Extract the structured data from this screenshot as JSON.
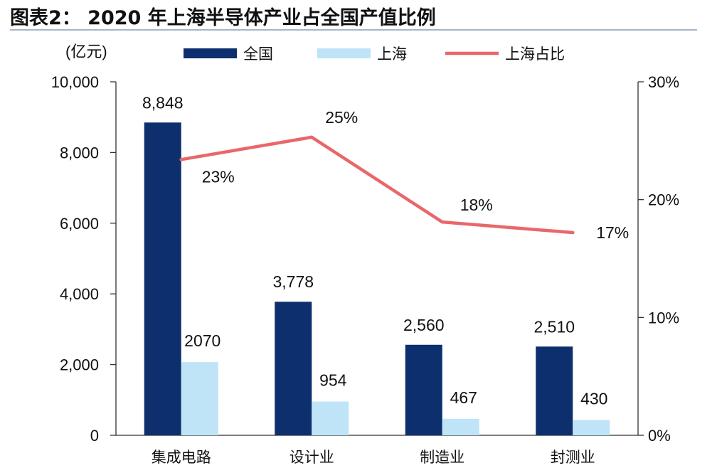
{
  "chart_data": {
    "type": "bar",
    "title": "图表2：  2020 年上海半导体产业占全国产值比例",
    "unit_label": "(亿元)",
    "categories": [
      "集成电路",
      "设计业",
      "制造业",
      "封测业"
    ],
    "series": [
      {
        "name": "全国",
        "kind": "bar",
        "axis": "left",
        "color": "#0e2f6e",
        "values": [
          8848,
          3778,
          2560,
          2510
        ],
        "labels": [
          "8,848",
          "3,778",
          "2,560",
          "2,510"
        ]
      },
      {
        "name": "上海",
        "kind": "bar",
        "axis": "left",
        "color": "#bfe4f7",
        "values": [
          2070,
          954,
          467,
          430
        ],
        "labels": [
          "2070",
          "954",
          "467",
          "430"
        ]
      },
      {
        "name": "上海占比",
        "kind": "line",
        "axis": "right",
        "color": "#e8676b",
        "values": [
          23.4,
          25.3,
          18.1,
          17.2
        ],
        "labels": [
          "23%",
          "25%",
          "18%",
          "17%"
        ]
      }
    ],
    "ylim_left": [
      0,
      10000
    ],
    "yticks_left": [
      "0",
      "2,000",
      "4,000",
      "6,000",
      "8,000",
      "10,000"
    ],
    "ylim_right": [
      0,
      30
    ],
    "yticks_right": [
      "0%",
      "10%",
      "20%",
      "30%"
    ],
    "legend_position": "top"
  }
}
